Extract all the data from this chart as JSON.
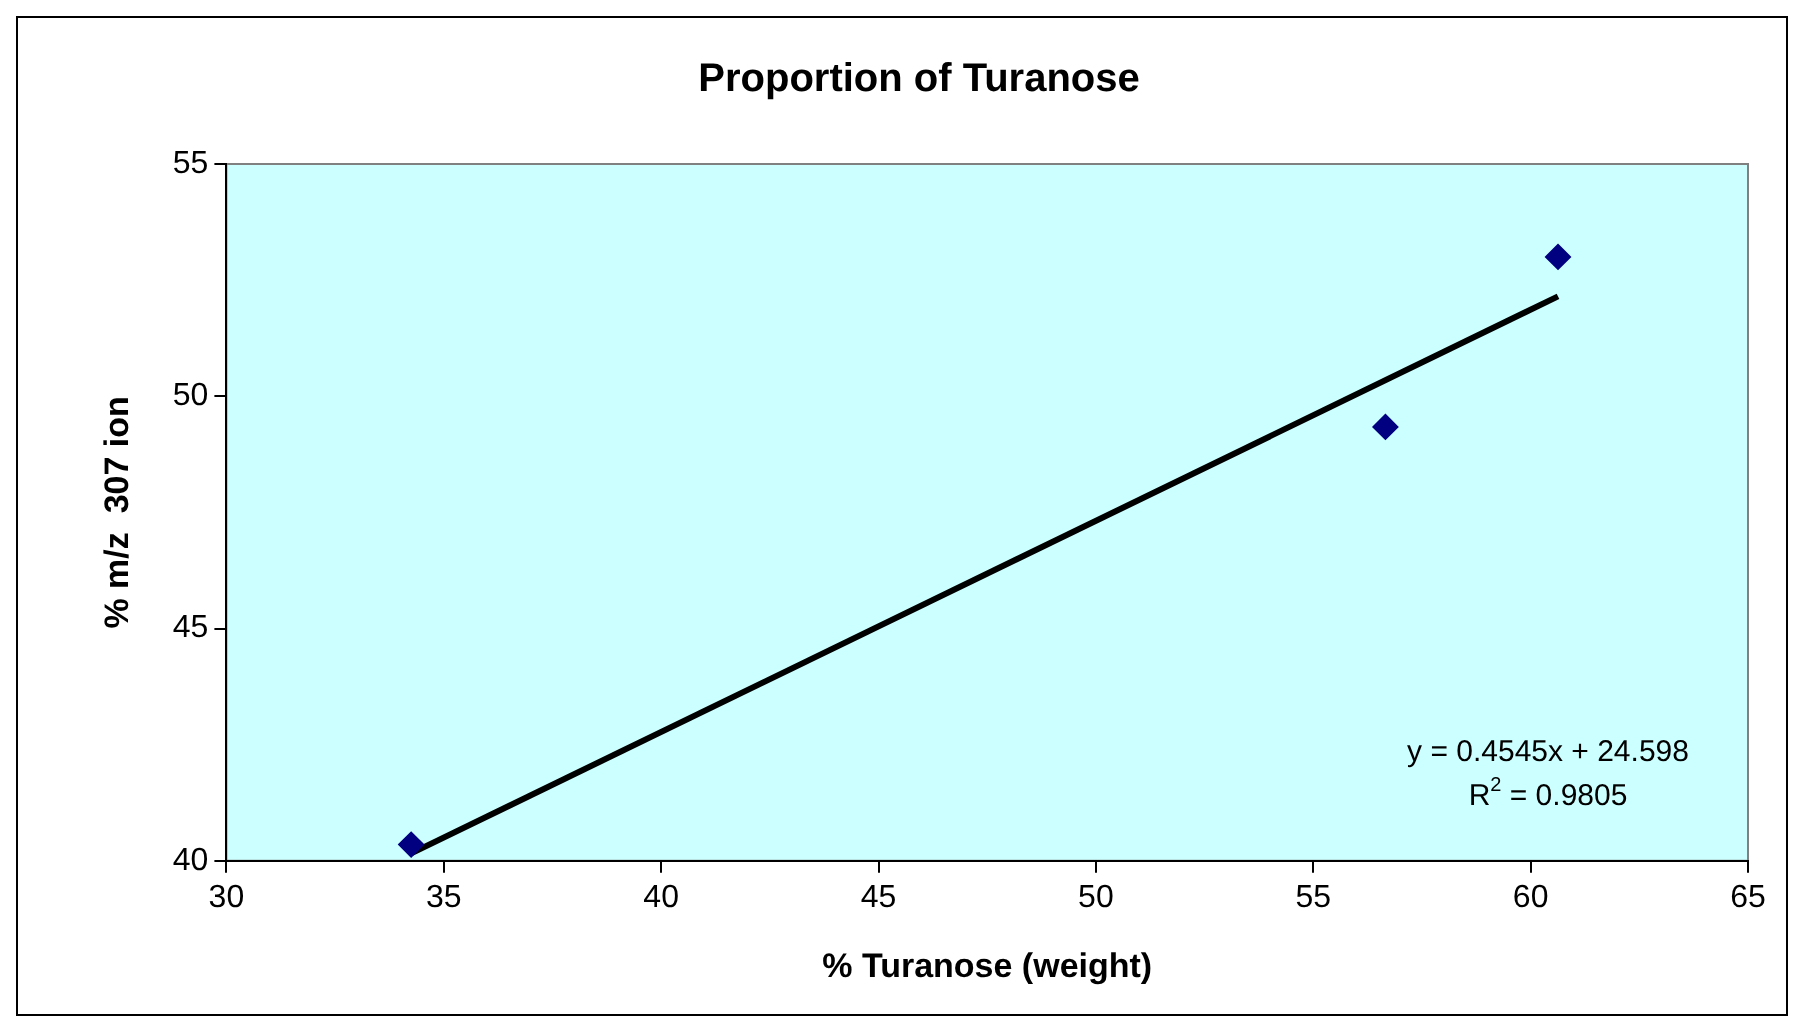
{
  "chart_data": {
    "type": "scatter",
    "title": "Proportion of Turanose",
    "xlabel": "% Turanose (weight)",
    "ylabel": "% m/z  307 ion",
    "series": [
      {
        "color": "#000080",
        "marker": "diamond",
        "x": [
          34.25,
          56.66,
          60.63
        ],
        "values": [
          40.35,
          49.34,
          53.0
        ]
      },
      {
        "type": "line",
        "color": "#000000",
        "marker": "none",
        "line_style": "solid",
        "x": [
          34.25,
          60.63
        ],
        "values": [
          40.16,
          52.15
        ]
      }
    ],
    "annotations": [
      {
        "text": "y = 0.4545x + 24.598"
      },
      {
        "text": "R$^{2}$ = 0.9805"
      }
    ],
    "xlim": [
      30,
      65
    ],
    "xticks": [
      30,
      35,
      40,
      45,
      50,
      55,
      60,
      65
    ],
    "ylim": [
      40,
      55
    ],
    "yticks": [
      40,
      45,
      50,
      55
    ],
    "grid": false,
    "legend": false
  }
}
